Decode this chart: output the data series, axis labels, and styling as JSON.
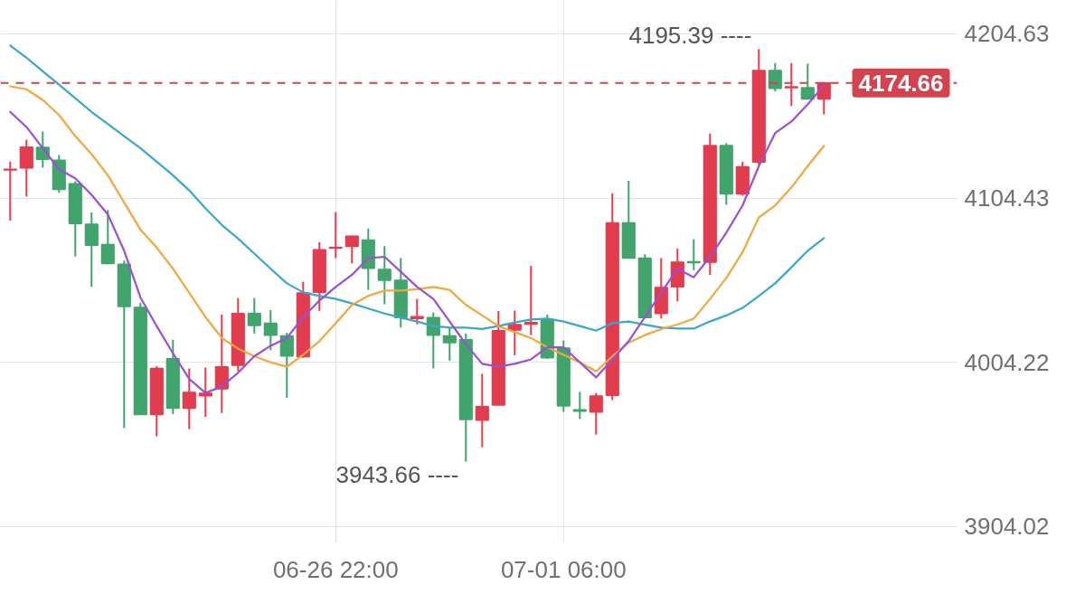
{
  "chart_data": {
    "type": "candlestick",
    "categories": [
      null,
      null,
      null,
      null,
      null,
      null,
      null,
      null,
      null,
      null,
      null,
      null,
      null,
      null,
      null,
      null,
      null,
      null,
      null,
      null,
      "06-26 22:00",
      null,
      null,
      null,
      null,
      null,
      null,
      null,
      null,
      null,
      null,
      null,
      null,
      null,
      "07-01 06:00",
      null,
      null,
      null,
      null,
      null,
      null,
      null,
      null,
      null,
      null,
      null,
      null,
      null,
      null,
      null,
      null
    ],
    "ohlc": [
      [
        4121.5,
        4126.6,
        4090.7,
        4122.0
      ],
      [
        4122.8,
        4140.0,
        4105.4,
        4135.5
      ],
      [
        4135.3,
        4145.0,
        4123.0,
        4128.1
      ],
      [
        4127.5,
        4130.7,
        4107.6,
        4109.7
      ],
      [
        4113.2,
        4114.7,
        4068.7,
        4088.9
      ],
      [
        4088.5,
        4095.7,
        4050.2,
        4075.6
      ],
      [
        4076.0,
        4097.1,
        4064.0,
        4064.4
      ],
      [
        4064.0,
        4066.2,
        3964.1,
        4038.3
      ],
      [
        4037.7,
        4040.5,
        3972.0,
        3972.4
      ],
      [
        3972.4,
        4001.8,
        3959.1,
        4000.5
      ],
      [
        4006.4,
        4018.0,
        3972.6,
        3976.2
      ],
      [
        3976.2,
        4000.5,
        3963.4,
        3985.8
      ],
      [
        3983.8,
        4001.0,
        3970.9,
        3985.3
      ],
      [
        3988.1,
        4033.3,
        3973.3,
        4001.5
      ],
      [
        4002.4,
        4043.4,
        3998.7,
        4034.0
      ],
      [
        4034.0,
        4043.4,
        4021.7,
        4026.7
      ],
      [
        4028.1,
        4036.1,
        4011.6,
        4020.8
      ],
      [
        4020.4,
        4022.3,
        3982.6,
        4008.0
      ],
      [
        4007.6,
        4053.4,
        4007.0,
        4046.6
      ],
      [
        4046.9,
        4077.5,
        4035.6,
        4072.9
      ],
      [
        4073.8,
        4095.9,
        4067.8,
        4074.3
      ],
      [
        4074.9,
        4081.5,
        4064.6,
        4081.1
      ],
      [
        4078.8,
        4085.8,
        4048.4,
        4061.6
      ],
      [
        4060.9,
        4075.1,
        4039.6,
        4054.3
      ],
      [
        4054.3,
        4067.8,
        4025.4,
        4031.5
      ],
      [
        4031.0,
        4042.9,
        4027.4,
        4032.0
      ],
      [
        4031.5,
        4034.6,
        4000.5,
        4020.8
      ],
      [
        4020.4,
        4025.4,
        4005.2,
        4016.2
      ],
      [
        4018.0,
        4021.7,
        3943.66,
        3969.3
      ],
      [
        3968.9,
        3997.2,
        3952.4,
        3977.2
      ],
      [
        3978.1,
        4035.5,
        3978.0,
        4023.5
      ],
      [
        4023.9,
        4035.8,
        4008.5,
        4027.2
      ],
      [
        4027.5,
        4063.1,
        4020.8,
        4028.5
      ],
      [
        4030.3,
        4033.3,
        4006.4,
        4007.0
      ],
      [
        4012.9,
        4017.5,
        3973.9,
        3977.6
      ],
      [
        3975.2,
        3986.2,
        3969.6,
        3974.4
      ],
      [
        3973.9,
        3985.5,
        3960.1,
        3983.6
      ],
      [
        3984.0,
        4107.3,
        3981.2,
        4089.3
      ],
      [
        4089.3,
        4115.0,
        4067.5,
        4067.8
      ],
      [
        4067.8,
        4070.1,
        4031.3,
        4031.5
      ],
      [
        4034.0,
        4067.8,
        4030.9,
        4049.9
      ],
      [
        4050.2,
        4073.6,
        4041.4,
        4065.3
      ],
      [
        4065.6,
        4079.3,
        4060.4,
        4065.0
      ],
      [
        4065.3,
        4143.8,
        4057.6,
        4136.4
      ],
      [
        4136.4,
        4138.0,
        4100.3,
        4106.9
      ],
      [
        4106.9,
        4126.6,
        4105.8,
        4123.5
      ],
      [
        4126.4,
        4195.39,
        4123.9,
        4182.2
      ],
      [
        4182.2,
        4186.8,
        4169.5,
        4171.4
      ],
      [
        4171.8,
        4186.8,
        4160.6,
        4172.3
      ],
      [
        4171.7,
        4186.4,
        4164.8,
        4164.9
      ],
      [
        4164.9,
        4175.4,
        4155.5,
        4174.66
      ]
    ],
    "colors": [
      "#e23d4f",
      "#e23d4f",
      "#41a46c",
      "#41a46c",
      "#41a46c",
      "#41a46c",
      "#41a46c",
      "#41a46c",
      "#41a46c",
      "#e23d4f",
      "#41a46c",
      "#e23d4f",
      "#e23d4f",
      "#e23d4f",
      "#e23d4f",
      "#41a46c",
      "#41a46c",
      "#41a46c",
      "#e23d4f",
      "#e23d4f",
      "#e23d4f",
      "#e23d4f",
      "#41a46c",
      "#41a46c",
      "#41a46c",
      "#e23d4f",
      "#41a46c",
      "#41a46c",
      "#41a46c",
      "#e23d4f",
      "#e23d4f",
      "#e23d4f",
      "#e23d4f",
      "#41a46c",
      "#41a46c",
      "#41a46c",
      "#e23d4f",
      "#e23d4f",
      "#41a46c",
      "#41a46c",
      "#e23d4f",
      "#e23d4f",
      "#41a46c",
      "#e23d4f",
      "#41a46c",
      "#e23d4f",
      "#e23d4f",
      "#41a46c",
      "#e23d4f",
      "#41a46c",
      "#e23d4f"
    ],
    "series": [
      {
        "type": "line",
        "color": "#3aa6cb",
        "values": [
          4197.5,
          4190.1,
          4181.8,
          4173.6,
          4165.3,
          4157.0,
          4149.6,
          4142.2,
          4134.9,
          4126.6,
          4118.3,
          4109.1,
          4098.1,
          4088.0,
          4079.7,
          4070.5,
          4061.3,
          4052.4,
          4046.9,
          4044.7,
          4042.9,
          4040.1,
          4037.0,
          4034.0,
          4031.4,
          4029.1,
          4026.3,
          4025.4,
          4025.4,
          4024.5,
          4026.3,
          4028.5,
          4030.3,
          4030.9,
          4029.1,
          4026.3,
          4023.5,
          4028.1,
          4029.1,
          4027.2,
          4025.4,
          4024.8,
          4024.8,
          4029.1,
          4032.8,
          4037.4,
          4044.7,
          4052.4,
          4062.2,
          4072.3,
          4080.0
        ]
      },
      {
        "type": "line",
        "color": "#f2a73c",
        "values": [
          4172.6,
          4170.8,
          4164.3,
          4155.1,
          4142.2,
          4131.2,
          4118.3,
          4101.8,
          4085.2,
          4074.2,
          4061.3,
          4046.6,
          4031.8,
          4019.0,
          4012.5,
          4007.9,
          4004.2,
          4001.5,
          4008.8,
          4017.1,
          4028.1,
          4039.2,
          4044.7,
          4048.0,
          4048.0,
          4048.8,
          4050.2,
          4048.4,
          4039.2,
          4032.8,
          4026.3,
          4022.6,
          4019.0,
          4013.4,
          4008.8,
          4004.2,
          3998.7,
          4007.9,
          4016.2,
          4020.8,
          4024.5,
          4027.2,
          4030.9,
          4042.9,
          4055.7,
          4071.4,
          4092.6,
          4099.9,
          4110.9,
          4123.9,
          4136.3
        ]
      },
      {
        "type": "line",
        "color": "#9b4fd3",
        "values": [
          4157.0,
          4147.8,
          4134.9,
          4122.0,
          4116.5,
          4106.4,
          4094.4,
          4072.3,
          4043.8,
          4026.3,
          4009.7,
          3994.1,
          3985.5,
          3989.5,
          3997.8,
          4007.9,
          4014.3,
          4019.0,
          4031.8,
          4041.9,
          4050.2,
          4057.6,
          4067.7,
          4068.6,
          4059.4,
          4050.2,
          4042.9,
          4029.1,
          4015.3,
          4003.3,
          4001.5,
          4003.3,
          4006.0,
          4013.4,
          4013.4,
          4004.2,
          3995.0,
          4006.0,
          4017.1,
          4031.8,
          4046.6,
          4061.3,
          4056.1,
          4068.6,
          4083.3,
          4099.9,
          4123.9,
          4144.1,
          4151.1,
          4161.6,
          4173.2
        ]
      }
    ],
    "ylim": [
      3894,
      4225
    ],
    "yticks": [
      4204.63,
      4104.43,
      4004.22,
      3904.02
    ],
    "grid": true,
    "ref_lines": [
      {
        "axis": "y",
        "value": 4174.66,
        "label": "4174.66",
        "color": "#d2434f",
        "line_style": "dashed"
      }
    ],
    "annotations": [
      "4195.39 ----",
      "3943.66 ----"
    ]
  }
}
